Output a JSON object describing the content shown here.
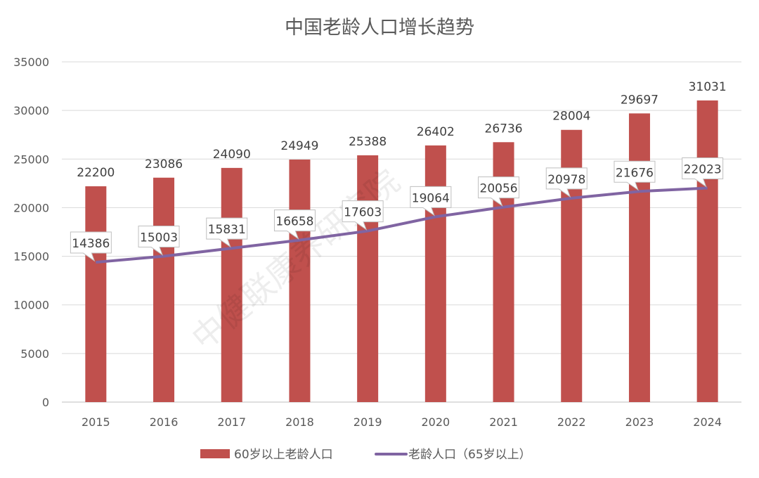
{
  "chart_data": {
    "type": "bar+line",
    "title": "中国老龄人口增长趋势",
    "categories": [
      "2015",
      "2016",
      "2017",
      "2018",
      "2019",
      "2020",
      "2021",
      "2022",
      "2023",
      "2024"
    ],
    "series": [
      {
        "name": "60岁以上老龄人口",
        "type": "bar",
        "color": "#C0504D",
        "values": [
          22200,
          23086,
          24090,
          24949,
          25388,
          26402,
          26736,
          28004,
          29697,
          31031
        ]
      },
      {
        "name": "老龄人口（65岁以上）",
        "type": "line",
        "color": "#8064A2",
        "values": [
          14386,
          15003,
          15831,
          16658,
          17603,
          19064,
          20056,
          20978,
          21676,
          22023
        ]
      }
    ],
    "ylim": [
      0,
      35000
    ],
    "yticks": [
      0,
      5000,
      10000,
      15000,
      20000,
      25000,
      30000,
      35000
    ],
    "grid": true,
    "legend": "bottom",
    "data_labels": true
  },
  "watermark": "中健联康养研究院"
}
